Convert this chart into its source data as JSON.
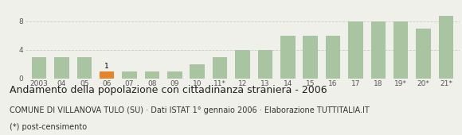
{
  "categories": [
    "2003",
    "04",
    "05",
    "06",
    "07",
    "08",
    "09",
    "10",
    "11*",
    "12",
    "13",
    "14",
    "15",
    "16",
    "17",
    "18",
    "19*",
    "20*",
    "21*"
  ],
  "values": [
    3,
    3,
    3,
    1,
    1,
    1,
    1,
    2,
    3,
    4,
    4,
    6,
    6,
    6,
    8,
    8,
    8,
    7,
    8.7
  ],
  "bar_colors": [
    "#a8c4a0",
    "#a8c4a0",
    "#a8c4a0",
    "#e8832a",
    "#a8c4a0",
    "#a8c4a0",
    "#a8c4a0",
    "#a8c4a0",
    "#a8c4a0",
    "#a8c4a0",
    "#a8c4a0",
    "#a8c4a0",
    "#a8c4a0",
    "#a8c4a0",
    "#a8c4a0",
    "#a8c4a0",
    "#a8c4a0",
    "#a8c4a0",
    "#a8c4a0"
  ],
  "highlighted_index": 3,
  "highlight_label": "1",
  "title": "Andamento della popolazione con cittadinanza straniera - 2006",
  "subtitle": "COMUNE DI VILLANOVA TULO (SU) · Dati ISTAT 1° gennaio 2006 · Elaborazione TUTTITALIA.IT",
  "footnote": "(*) post-censimento",
  "ylim": [
    0,
    10
  ],
  "yticks": [
    0,
    4,
    8
  ],
  "grid_color": "#cccccc",
  "background_color": "#f0f0eb",
  "title_fontsize": 9.0,
  "subtitle_fontsize": 7.0,
  "footnote_fontsize": 7.0,
  "tick_fontsize": 6.5
}
